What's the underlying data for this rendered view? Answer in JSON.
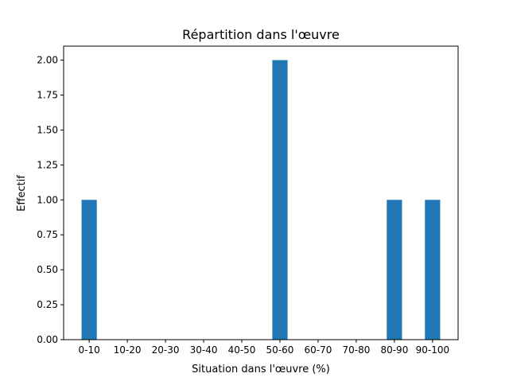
{
  "chart_data": {
    "type": "bar",
    "title": "Répartition dans l'œuvre",
    "xlabel": "Situation dans l'œuvre (%)",
    "ylabel": "Effectif",
    "categories": [
      "0-10",
      "10-20",
      "20-30",
      "30-40",
      "40-50",
      "50-60",
      "60-70",
      "70-80",
      "80-90",
      "90-100"
    ],
    "values": [
      1,
      0,
      0,
      0,
      0,
      2,
      0,
      0,
      1,
      1
    ],
    "ylim": [
      0,
      2.1
    ],
    "yticks": [
      "0.00",
      "0.25",
      "0.50",
      "0.75",
      "1.00",
      "1.25",
      "1.50",
      "1.75",
      "2.00"
    ],
    "grid": false,
    "bar_color": "#1f77b4"
  }
}
